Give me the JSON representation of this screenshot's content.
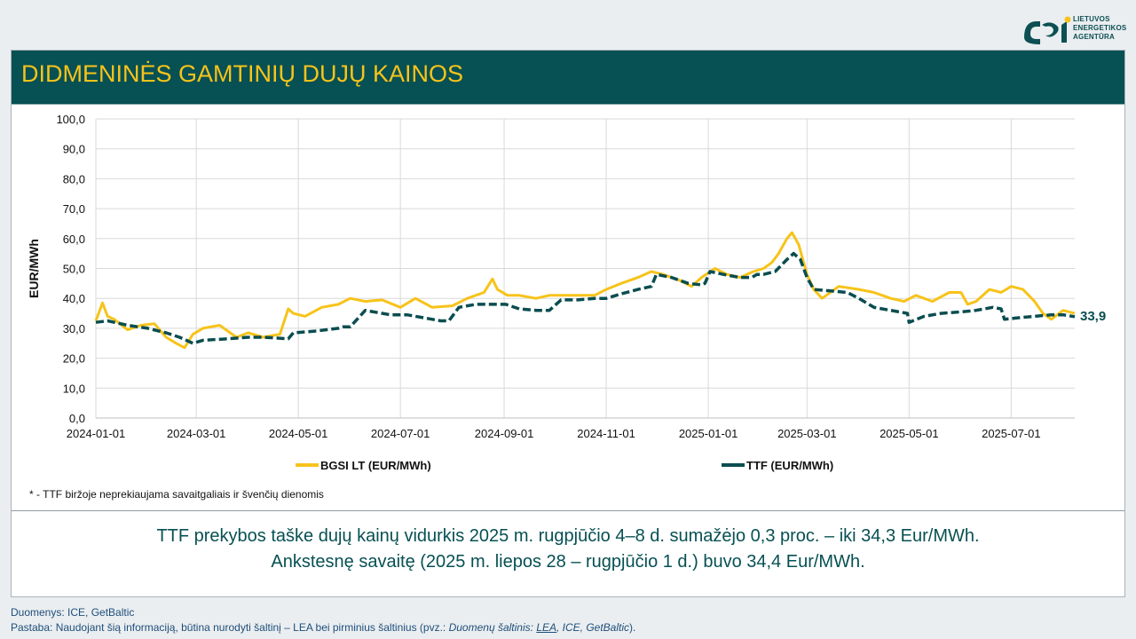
{
  "logo": {
    "line1": "LIETUVOS",
    "line2": "ENERGETIKOS",
    "line3": "AGENTŪRA"
  },
  "title": "DIDMENINĖS GAMTINIŲ DUJŲ KAINOS",
  "note": "* - TTF biržoje neprekiaujama savaitgaliais ir švenčių dienomis",
  "summary": {
    "line1": "TTF prekybos taške dujų kainų vidurkis 2025 m. rugpjūčio 4–8 d. sumažėjo 0,3 proc. – iki 34,3 Eur/MWh.",
    "line2": "Ankstesnę savaitę (2025 m. liepos 28 – rugpjūčio 1 d.) buvo 34,4 Eur/MWh."
  },
  "footer": {
    "sources": "Duomenys: ICE, GetBaltic",
    "note_prefix": "Pastaba: Naudojant šią informaciją, būtina nurodyti šaltinį – LEA bei pirminius šaltinius (pvz.: ",
    "note_italic": "Duomenų šaltinis: ",
    "note_link": "LEA",
    "note_rest": ", ICE, GetBaltic",
    "note_suffix": ")."
  },
  "colors": {
    "bgsi": "#f7c31a",
    "ttf": "#0a4d4f",
    "header": "#075053",
    "title": "#f7c31a",
    "grid": "#d9d9d9"
  },
  "chart_data": {
    "type": "line",
    "ylabel": "EUR/MWh",
    "ylim": [
      0,
      100
    ],
    "yticks": [
      "0,0",
      "10,0",
      "20,0",
      "30,0",
      "40,0",
      "50,0",
      "60,0",
      "70,0",
      "80,0",
      "90,0",
      "100,0"
    ],
    "x_range": [
      "2024-01-01",
      "2025-08-08"
    ],
    "xticks": [
      "2024-01-01",
      "2024-03-01",
      "2024-05-01",
      "2024-07-01",
      "2024-09-01",
      "2024-11-01",
      "2025-01-01",
      "2025-03-01",
      "2025-05-01",
      "2025-07-01"
    ],
    "grid": true,
    "legend_position": "bottom",
    "end_label": "33,9",
    "series": [
      {
        "name": "BGSI LT (EUR/MWh)",
        "color": "#f7c31a",
        "style": "solid",
        "x": [
          "2024-01-01",
          "2024-01-05",
          "2024-01-08",
          "2024-01-12",
          "2024-01-20",
          "2024-01-28",
          "2024-02-05",
          "2024-02-12",
          "2024-02-18",
          "2024-02-23",
          "2024-02-28",
          "2024-03-05",
          "2024-03-15",
          "2024-03-25",
          "2024-04-01",
          "2024-04-10",
          "2024-04-20",
          "2024-04-25",
          "2024-04-28",
          "2024-05-05",
          "2024-05-15",
          "2024-05-25",
          "2024-06-01",
          "2024-06-10",
          "2024-06-20",
          "2024-07-01",
          "2024-07-10",
          "2024-07-20",
          "2024-08-01",
          "2024-08-10",
          "2024-08-20",
          "2024-08-25",
          "2024-08-28",
          "2024-09-03",
          "2024-09-10",
          "2024-09-20",
          "2024-09-28",
          "2024-10-05",
          "2024-10-15",
          "2024-10-25",
          "2024-11-01",
          "2024-11-10",
          "2024-11-20",
          "2024-11-28",
          "2024-12-05",
          "2024-12-15",
          "2024-12-22",
          "2024-12-28",
          "2025-01-05",
          "2025-01-12",
          "2025-01-20",
          "2025-01-28",
          "2025-02-03",
          "2025-02-08",
          "2025-02-12",
          "2025-02-17",
          "2025-02-20",
          "2025-02-24",
          "2025-03-01",
          "2025-03-05",
          "2025-03-10",
          "2025-03-20",
          "2025-04-01",
          "2025-04-10",
          "2025-04-20",
          "2025-04-28",
          "2025-05-05",
          "2025-05-15",
          "2025-05-25",
          "2025-06-01",
          "2025-06-05",
          "2025-06-10",
          "2025-06-18",
          "2025-06-25",
          "2025-07-01",
          "2025-07-08",
          "2025-07-15",
          "2025-07-20",
          "2025-07-25",
          "2025-08-01",
          "2025-08-08"
        ],
        "y": [
          32.5,
          38.5,
          34,
          33,
          29.5,
          31,
          31.5,
          27,
          25,
          23.5,
          28,
          30,
          31,
          27,
          28.5,
          27,
          28,
          36.5,
          35,
          34,
          37,
          38,
          40,
          39,
          39.5,
          37,
          40,
          37,
          37.5,
          40,
          42,
          46.5,
          43,
          41,
          41,
          40,
          41,
          41,
          41,
          41,
          43,
          45,
          47,
          49,
          48,
          46,
          44,
          47,
          50,
          48,
          47,
          49,
          50,
          52,
          55,
          60,
          62,
          58,
          48,
          43,
          40,
          44,
          43,
          42,
          40,
          39,
          41,
          39,
          42,
          42,
          38,
          39,
          43,
          42,
          44,
          43,
          39,
          35,
          33,
          36,
          35
        ]
      },
      {
        "name": "TTF (EUR/MWh)",
        "color": "#0a4d4f",
        "style": "dashed",
        "x": [
          "2024-01-01",
          "2024-01-08",
          "2024-01-20",
          "2024-02-01",
          "2024-02-12",
          "2024-02-20",
          "2024-02-28",
          "2024-03-05",
          "2024-03-20",
          "2024-04-01",
          "2024-04-10",
          "2024-04-25",
          "2024-04-28",
          "2024-05-10",
          "2024-05-25",
          "2024-05-28",
          "2024-06-01",
          "2024-06-10",
          "2024-06-25",
          "2024-07-05",
          "2024-07-15",
          "2024-07-25",
          "2024-07-30",
          "2024-08-05",
          "2024-08-15",
          "2024-08-25",
          "2024-09-02",
          "2024-09-10",
          "2024-09-20",
          "2024-09-28",
          "2024-10-05",
          "2024-10-15",
          "2024-10-25",
          "2024-11-01",
          "2024-11-10",
          "2024-11-20",
          "2024-11-28",
          "2024-12-01",
          "2024-12-10",
          "2024-12-20",
          "2024-12-28",
          "2024-12-30",
          "2025-01-02",
          "2025-01-10",
          "2025-01-20",
          "2025-01-27",
          "2025-01-30",
          "2025-02-03",
          "2025-02-10",
          "2025-02-17",
          "2025-02-21",
          "2025-02-25",
          "2025-03-01",
          "2025-03-05",
          "2025-03-15",
          "2025-03-25",
          "2025-04-01",
          "2025-04-10",
          "2025-04-20",
          "2025-04-30",
          "2025-05-01",
          "2025-05-10",
          "2025-05-20",
          "2025-06-01",
          "2025-06-10",
          "2025-06-20",
          "2025-06-25",
          "2025-06-27",
          "2025-07-05",
          "2025-07-15",
          "2025-07-25",
          "2025-08-01",
          "2025-08-08"
        ],
        "y": [
          32,
          32.5,
          31,
          30,
          28.5,
          27,
          25,
          26,
          26.5,
          27,
          27,
          26.5,
          28.5,
          29,
          30,
          30.5,
          30.5,
          36,
          34.5,
          34.5,
          33.5,
          32.5,
          32.5,
          37,
          38,
          38,
          38,
          36.5,
          36,
          36,
          39.5,
          39.5,
          40,
          40,
          41.5,
          43,
          44,
          48,
          47,
          45,
          44.5,
          45,
          49,
          48,
          47,
          47,
          48,
          48,
          49,
          53,
          55,
          53,
          47,
          43,
          42.5,
          42,
          40,
          37,
          36,
          35,
          32,
          34,
          35,
          35.5,
          36,
          37,
          36.5,
          33,
          33.5,
          34,
          34.5,
          34.5,
          33.9
        ]
      }
    ]
  }
}
